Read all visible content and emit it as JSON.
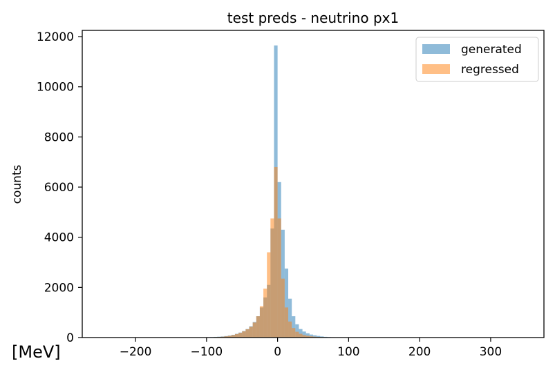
{
  "chart_data": {
    "type": "bar",
    "title": "test preds - neutrino px1",
    "xlabel": "",
    "ylabel": "counts",
    "x_unit_note": "[MeV]",
    "xlim": [
      -275,
      375
    ],
    "ylim": [
      0,
      12250
    ],
    "x_ticks": [
      -200,
      -100,
      0,
      100,
      200,
      300
    ],
    "x_tick_labels": [
      "−200",
      "−100",
      "0",
      "100",
      "200",
      "300"
    ],
    "y_ticks": [
      0,
      2000,
      4000,
      6000,
      8000,
      10000,
      12000
    ],
    "y_tick_labels": [
      "0",
      "2000",
      "4000",
      "6000",
      "8000",
      "10000",
      "12000"
    ],
    "legend": {
      "placement": "top-right",
      "entries": [
        "generated",
        "regressed"
      ]
    },
    "series": [
      {
        "name": "generated",
        "color": "#1f77b4",
        "opacity": 0.5,
        "bin_width": 5,
        "bin_centers": [
          -112.5,
          -107.5,
          -102.5,
          -97.5,
          -92.5,
          -87.5,
          -82.5,
          -77.5,
          -72.5,
          -67.5,
          -62.5,
          -57.5,
          -52.5,
          -47.5,
          -42.5,
          -37.5,
          -32.5,
          -27.5,
          -22.5,
          -17.5,
          -12.5,
          -7.5,
          -2.5,
          2.5,
          7.5,
          12.5,
          17.5,
          22.5,
          27.5,
          32.5,
          37.5,
          42.5,
          47.5,
          52.5,
          57.5,
          62.5,
          67.5,
          72.5,
          77.5,
          82.5,
          87.5,
          92.5,
          97.5,
          102.5,
          107.5,
          112.5
        ],
        "counts": [
          5,
          8,
          10,
          15,
          20,
          28,
          35,
          45,
          60,
          80,
          110,
          150,
          200,
          260,
          340,
          450,
          620,
          850,
          1200,
          1600,
          2100,
          4350,
          11650,
          6200,
          4300,
          2750,
          1550,
          850,
          530,
          340,
          240,
          170,
          120,
          90,
          65,
          45,
          30,
          20,
          15,
          10,
          8,
          5,
          4,
          3,
          2,
          1
        ]
      },
      {
        "name": "regressed",
        "color": "#ff7f0e",
        "opacity": 0.5,
        "bin_width": 5,
        "bin_centers": [
          -112.5,
          -107.5,
          -102.5,
          -97.5,
          -92.5,
          -87.5,
          -82.5,
          -77.5,
          -72.5,
          -67.5,
          -62.5,
          -57.5,
          -52.5,
          -47.5,
          -42.5,
          -37.5,
          -32.5,
          -27.5,
          -22.5,
          -17.5,
          -12.5,
          -7.5,
          -2.5,
          2.5,
          7.5,
          12.5,
          17.5,
          22.5,
          27.5,
          32.5,
          37.5,
          42.5,
          47.5,
          52.5,
          57.5,
          62.5,
          67.5,
          72.5,
          77.5,
          82.5,
          87.5,
          92.5,
          97.5,
          102.5,
          107.5,
          112.5
        ],
        "counts": [
          2,
          3,
          5,
          8,
          12,
          18,
          25,
          35,
          50,
          70,
          100,
          140,
          190,
          250,
          330,
          430,
          600,
          850,
          1250,
          1950,
          3400,
          4750,
          6800,
          4750,
          2350,
          1200,
          640,
          380,
          230,
          150,
          100,
          70,
          50,
          35,
          25,
          18,
          12,
          8,
          6,
          4,
          3,
          2,
          1,
          1,
          0,
          0
        ]
      }
    ]
  }
}
